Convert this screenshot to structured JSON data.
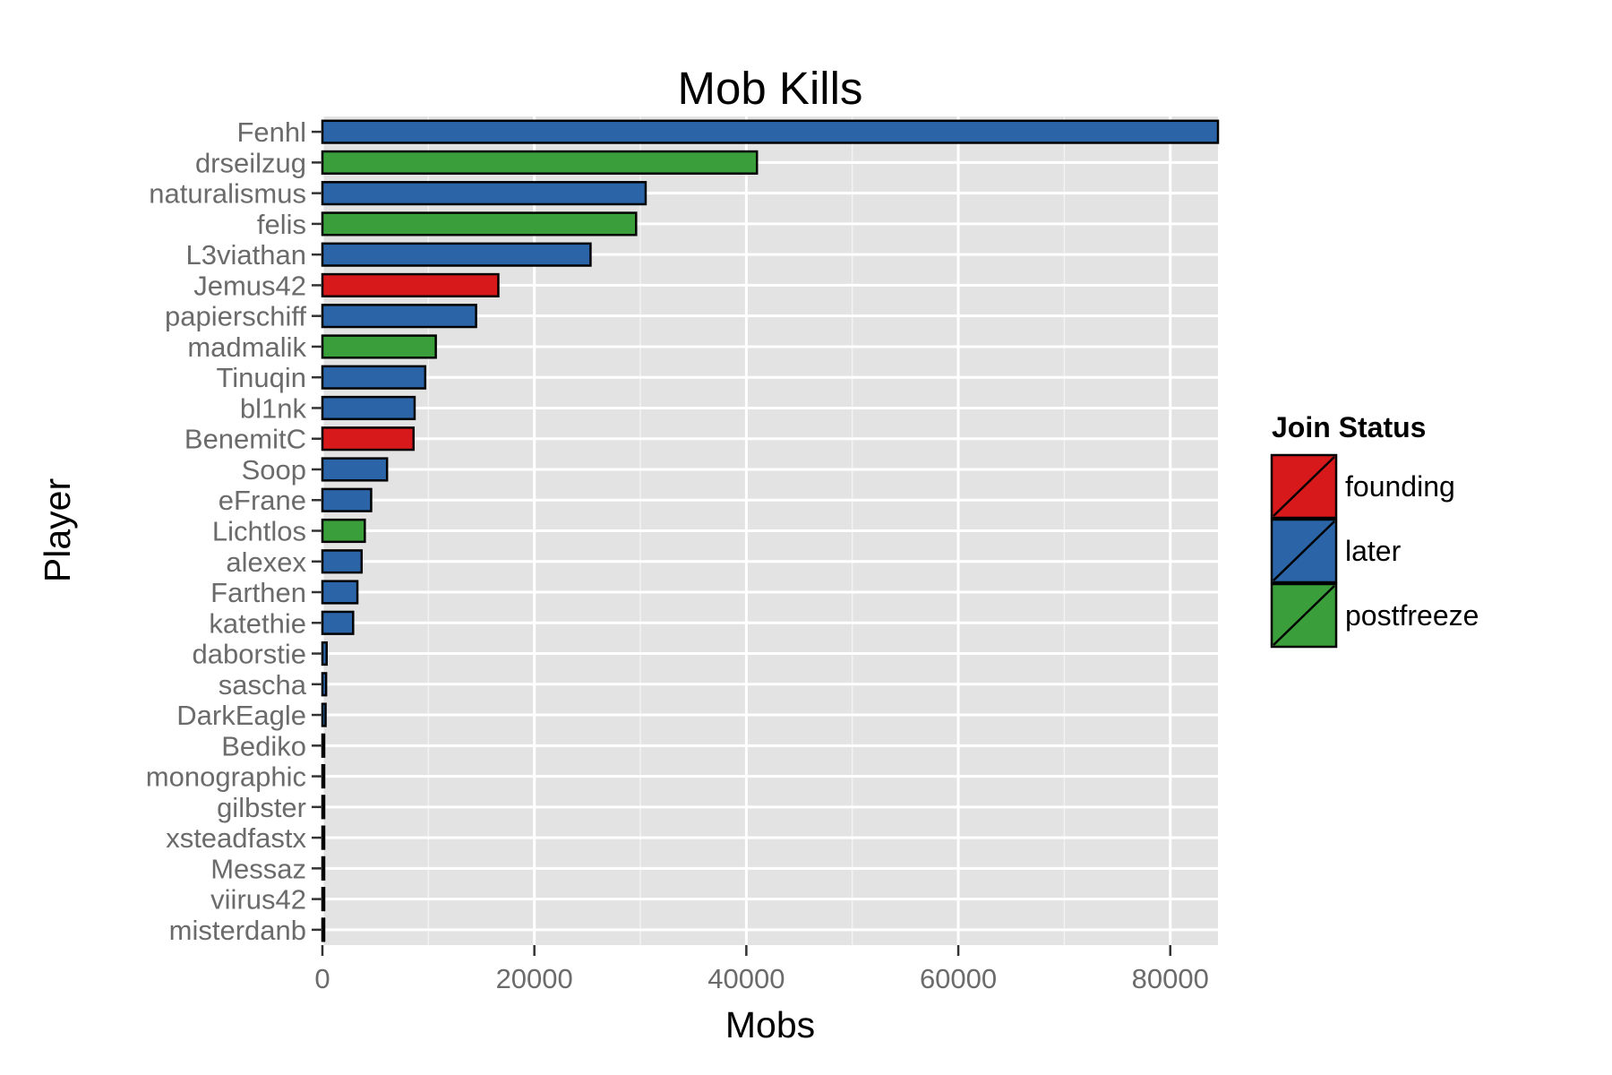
{
  "chart_data": {
    "type": "bar",
    "orientation": "horizontal",
    "title": "Mob Kills",
    "xlabel": "Mobs",
    "ylabel": "Player",
    "xlim": [
      0,
      84500
    ],
    "xticks": [
      0,
      20000,
      40000,
      60000,
      80000
    ],
    "grid": true,
    "legend": {
      "title": "Join Status",
      "position": "right",
      "entries": [
        {
          "name": "founding",
          "color": "#d7191c"
        },
        {
          "name": "later",
          "color": "#2b65a8"
        },
        {
          "name": "postfreeze",
          "color": "#3a9e3a"
        }
      ]
    },
    "categories": [
      "Fenhl",
      "drseilzug",
      "naturalismus",
      "felis",
      "L3viathan",
      "Jemus42",
      "papierschiff",
      "madmalik",
      "Tinuqin",
      "bl1nk",
      "BenemitC",
      "Soop",
      "eFrane",
      "Lichtlos",
      "alexex",
      "Farthen",
      "katethie",
      "daborstie",
      "sascha",
      "DarkEagle",
      "Bediko",
      "monographic",
      "gilbster",
      "xsteadfastx",
      "Messaz",
      "viirus42",
      "misterdanb"
    ],
    "values": [
      84500,
      41000,
      30500,
      29600,
      25300,
      16600,
      14500,
      10700,
      9700,
      8700,
      8600,
      6100,
      4600,
      4000,
      3700,
      3300,
      2900,
      400,
      350,
      300,
      150,
      100,
      80,
      60,
      50,
      40,
      30
    ],
    "groups": [
      "later",
      "postfreeze",
      "later",
      "postfreeze",
      "later",
      "founding",
      "later",
      "postfreeze",
      "later",
      "later",
      "founding",
      "later",
      "later",
      "postfreeze",
      "later",
      "later",
      "later",
      "later",
      "later",
      "later",
      "later",
      "later",
      "later",
      "later",
      "later",
      "later",
      "later"
    ]
  }
}
